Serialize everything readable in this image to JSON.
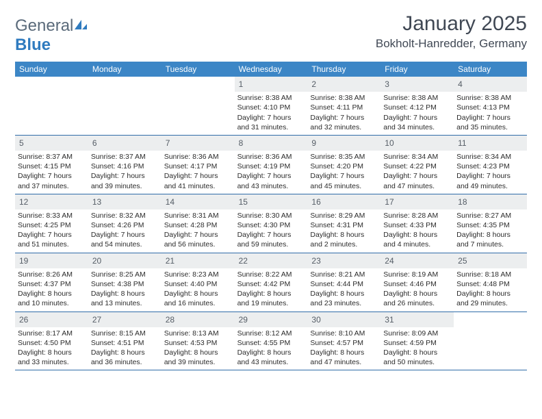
{
  "brand": {
    "part1": "General",
    "part2": "Blue"
  },
  "title": "January 2025",
  "location": "Bokholt-Hanredder, Germany",
  "colors": {
    "header_bg": "#3c86c6",
    "header_text": "#ffffff",
    "daynum_bg": "#eceeef",
    "week_border": "#2f6ca8",
    "logo_gray": "#5a6a7a",
    "logo_blue": "#2f7bbf",
    "title_color": "#404854"
  },
  "weekdays": [
    "Sunday",
    "Monday",
    "Tuesday",
    "Wednesday",
    "Thursday",
    "Friday",
    "Saturday"
  ],
  "weeks": [
    [
      {
        "n": "",
        "sr": "",
        "ss": "",
        "dl": ""
      },
      {
        "n": "",
        "sr": "",
        "ss": "",
        "dl": ""
      },
      {
        "n": "",
        "sr": "",
        "ss": "",
        "dl": ""
      },
      {
        "n": "1",
        "sr": "Sunrise: 8:38 AM",
        "ss": "Sunset: 4:10 PM",
        "dl": "Daylight: 7 hours and 31 minutes."
      },
      {
        "n": "2",
        "sr": "Sunrise: 8:38 AM",
        "ss": "Sunset: 4:11 PM",
        "dl": "Daylight: 7 hours and 32 minutes."
      },
      {
        "n": "3",
        "sr": "Sunrise: 8:38 AM",
        "ss": "Sunset: 4:12 PM",
        "dl": "Daylight: 7 hours and 34 minutes."
      },
      {
        "n": "4",
        "sr": "Sunrise: 8:38 AM",
        "ss": "Sunset: 4:13 PM",
        "dl": "Daylight: 7 hours and 35 minutes."
      }
    ],
    [
      {
        "n": "5",
        "sr": "Sunrise: 8:37 AM",
        "ss": "Sunset: 4:15 PM",
        "dl": "Daylight: 7 hours and 37 minutes."
      },
      {
        "n": "6",
        "sr": "Sunrise: 8:37 AM",
        "ss": "Sunset: 4:16 PM",
        "dl": "Daylight: 7 hours and 39 minutes."
      },
      {
        "n": "7",
        "sr": "Sunrise: 8:36 AM",
        "ss": "Sunset: 4:17 PM",
        "dl": "Daylight: 7 hours and 41 minutes."
      },
      {
        "n": "8",
        "sr": "Sunrise: 8:36 AM",
        "ss": "Sunset: 4:19 PM",
        "dl": "Daylight: 7 hours and 43 minutes."
      },
      {
        "n": "9",
        "sr": "Sunrise: 8:35 AM",
        "ss": "Sunset: 4:20 PM",
        "dl": "Daylight: 7 hours and 45 minutes."
      },
      {
        "n": "10",
        "sr": "Sunrise: 8:34 AM",
        "ss": "Sunset: 4:22 PM",
        "dl": "Daylight: 7 hours and 47 minutes."
      },
      {
        "n": "11",
        "sr": "Sunrise: 8:34 AM",
        "ss": "Sunset: 4:23 PM",
        "dl": "Daylight: 7 hours and 49 minutes."
      }
    ],
    [
      {
        "n": "12",
        "sr": "Sunrise: 8:33 AM",
        "ss": "Sunset: 4:25 PM",
        "dl": "Daylight: 7 hours and 51 minutes."
      },
      {
        "n": "13",
        "sr": "Sunrise: 8:32 AM",
        "ss": "Sunset: 4:26 PM",
        "dl": "Daylight: 7 hours and 54 minutes."
      },
      {
        "n": "14",
        "sr": "Sunrise: 8:31 AM",
        "ss": "Sunset: 4:28 PM",
        "dl": "Daylight: 7 hours and 56 minutes."
      },
      {
        "n": "15",
        "sr": "Sunrise: 8:30 AM",
        "ss": "Sunset: 4:30 PM",
        "dl": "Daylight: 7 hours and 59 minutes."
      },
      {
        "n": "16",
        "sr": "Sunrise: 8:29 AM",
        "ss": "Sunset: 4:31 PM",
        "dl": "Daylight: 8 hours and 2 minutes."
      },
      {
        "n": "17",
        "sr": "Sunrise: 8:28 AM",
        "ss": "Sunset: 4:33 PM",
        "dl": "Daylight: 8 hours and 4 minutes."
      },
      {
        "n": "18",
        "sr": "Sunrise: 8:27 AM",
        "ss": "Sunset: 4:35 PM",
        "dl": "Daylight: 8 hours and 7 minutes."
      }
    ],
    [
      {
        "n": "19",
        "sr": "Sunrise: 8:26 AM",
        "ss": "Sunset: 4:37 PM",
        "dl": "Daylight: 8 hours and 10 minutes."
      },
      {
        "n": "20",
        "sr": "Sunrise: 8:25 AM",
        "ss": "Sunset: 4:38 PM",
        "dl": "Daylight: 8 hours and 13 minutes."
      },
      {
        "n": "21",
        "sr": "Sunrise: 8:23 AM",
        "ss": "Sunset: 4:40 PM",
        "dl": "Daylight: 8 hours and 16 minutes."
      },
      {
        "n": "22",
        "sr": "Sunrise: 8:22 AM",
        "ss": "Sunset: 4:42 PM",
        "dl": "Daylight: 8 hours and 19 minutes."
      },
      {
        "n": "23",
        "sr": "Sunrise: 8:21 AM",
        "ss": "Sunset: 4:44 PM",
        "dl": "Daylight: 8 hours and 23 minutes."
      },
      {
        "n": "24",
        "sr": "Sunrise: 8:19 AM",
        "ss": "Sunset: 4:46 PM",
        "dl": "Daylight: 8 hours and 26 minutes."
      },
      {
        "n": "25",
        "sr": "Sunrise: 8:18 AM",
        "ss": "Sunset: 4:48 PM",
        "dl": "Daylight: 8 hours and 29 minutes."
      }
    ],
    [
      {
        "n": "26",
        "sr": "Sunrise: 8:17 AM",
        "ss": "Sunset: 4:50 PM",
        "dl": "Daylight: 8 hours and 33 minutes."
      },
      {
        "n": "27",
        "sr": "Sunrise: 8:15 AM",
        "ss": "Sunset: 4:51 PM",
        "dl": "Daylight: 8 hours and 36 minutes."
      },
      {
        "n": "28",
        "sr": "Sunrise: 8:13 AM",
        "ss": "Sunset: 4:53 PM",
        "dl": "Daylight: 8 hours and 39 minutes."
      },
      {
        "n": "29",
        "sr": "Sunrise: 8:12 AM",
        "ss": "Sunset: 4:55 PM",
        "dl": "Daylight: 8 hours and 43 minutes."
      },
      {
        "n": "30",
        "sr": "Sunrise: 8:10 AM",
        "ss": "Sunset: 4:57 PM",
        "dl": "Daylight: 8 hours and 47 minutes."
      },
      {
        "n": "31",
        "sr": "Sunrise: 8:09 AM",
        "ss": "Sunset: 4:59 PM",
        "dl": "Daylight: 8 hours and 50 minutes."
      },
      {
        "n": "",
        "sr": "",
        "ss": "",
        "dl": ""
      }
    ]
  ]
}
